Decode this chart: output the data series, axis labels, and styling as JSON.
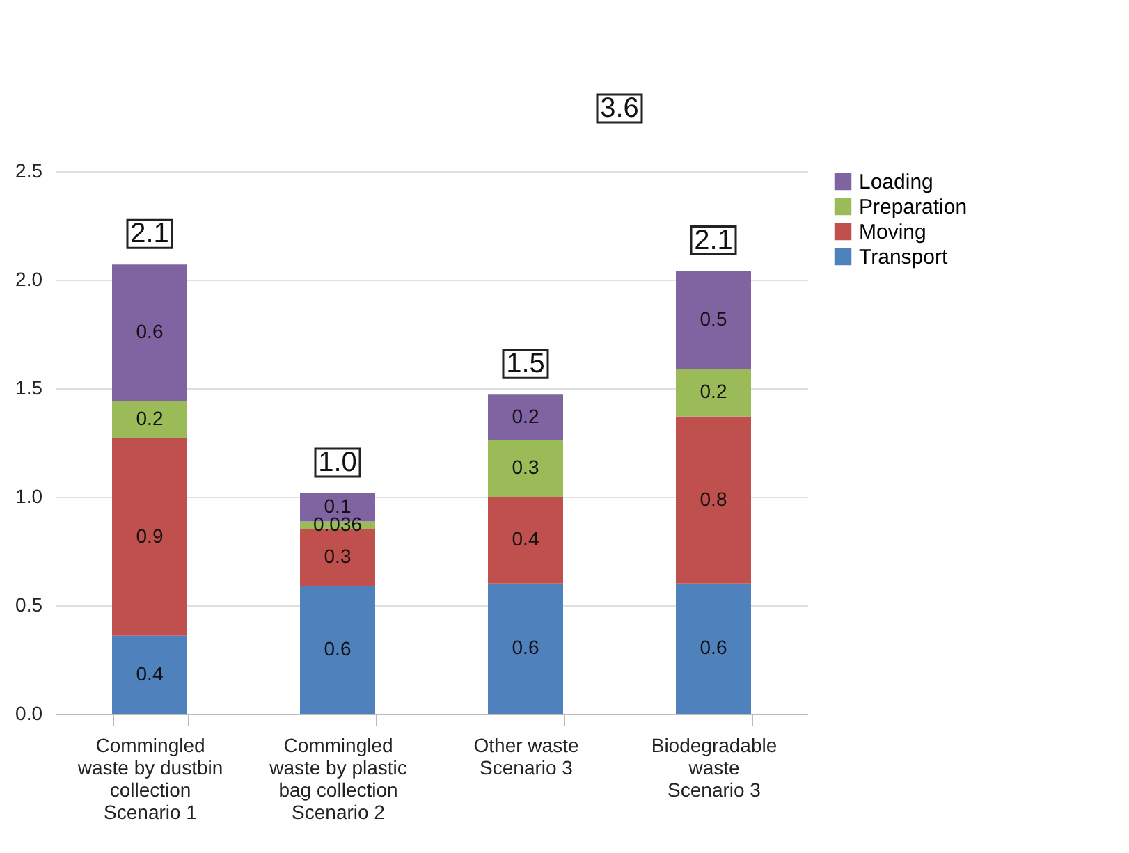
{
  "chart_data": {
    "type": "bar",
    "stacked": true,
    "categories": [
      "Commingled\nwaste by dustbin\ncollection\n\nScenario 1",
      "Commingled\nwaste by plastic\nbag collection\n\nScenario 2",
      "Other waste\n\n\n\nScenario 3",
      "Biodegradable\nwaste\n\n\nScenario 3"
    ],
    "series": [
      {
        "name": "Transport",
        "color": "#4f81bd",
        "values": [
          0.36,
          0.59,
          0.6,
          0.6
        ],
        "value_labels": [
          "0.4",
          "0.6",
          "0.6",
          "0.6"
        ]
      },
      {
        "name": "Moving",
        "color": "#c0504d",
        "values": [
          0.91,
          0.26,
          0.4,
          0.77
        ],
        "value_labels": [
          "0.9",
          "0.3",
          "0.4",
          "0.8"
        ]
      },
      {
        "name": "Preparation",
        "color": "#9bbb59",
        "values": [
          0.17,
          0.036,
          0.26,
          0.22
        ],
        "value_labels": [
          "0.2",
          "0.036",
          "0.3",
          "0.2"
        ]
      },
      {
        "name": "Loading",
        "color": "#8064a2",
        "values": [
          0.63,
          0.13,
          0.21,
          0.45
        ],
        "value_labels": [
          "0.6",
          "0.1",
          "0.2",
          "0.5"
        ]
      }
    ],
    "totals": [
      "2.1",
      "1.0",
      "1.5",
      "2.1"
    ],
    "annotations": [
      "3.6"
    ],
    "ylim": [
      0,
      2.5
    ],
    "yticks": [
      {
        "value": 0,
        "label": "0.0"
      },
      0.5,
      {
        "value": 1,
        "label": "1.0"
      },
      1.5,
      {
        "value": 2,
        "label": "2.0"
      },
      2.5
    ],
    "grid": "y",
    "legend": "right"
  }
}
